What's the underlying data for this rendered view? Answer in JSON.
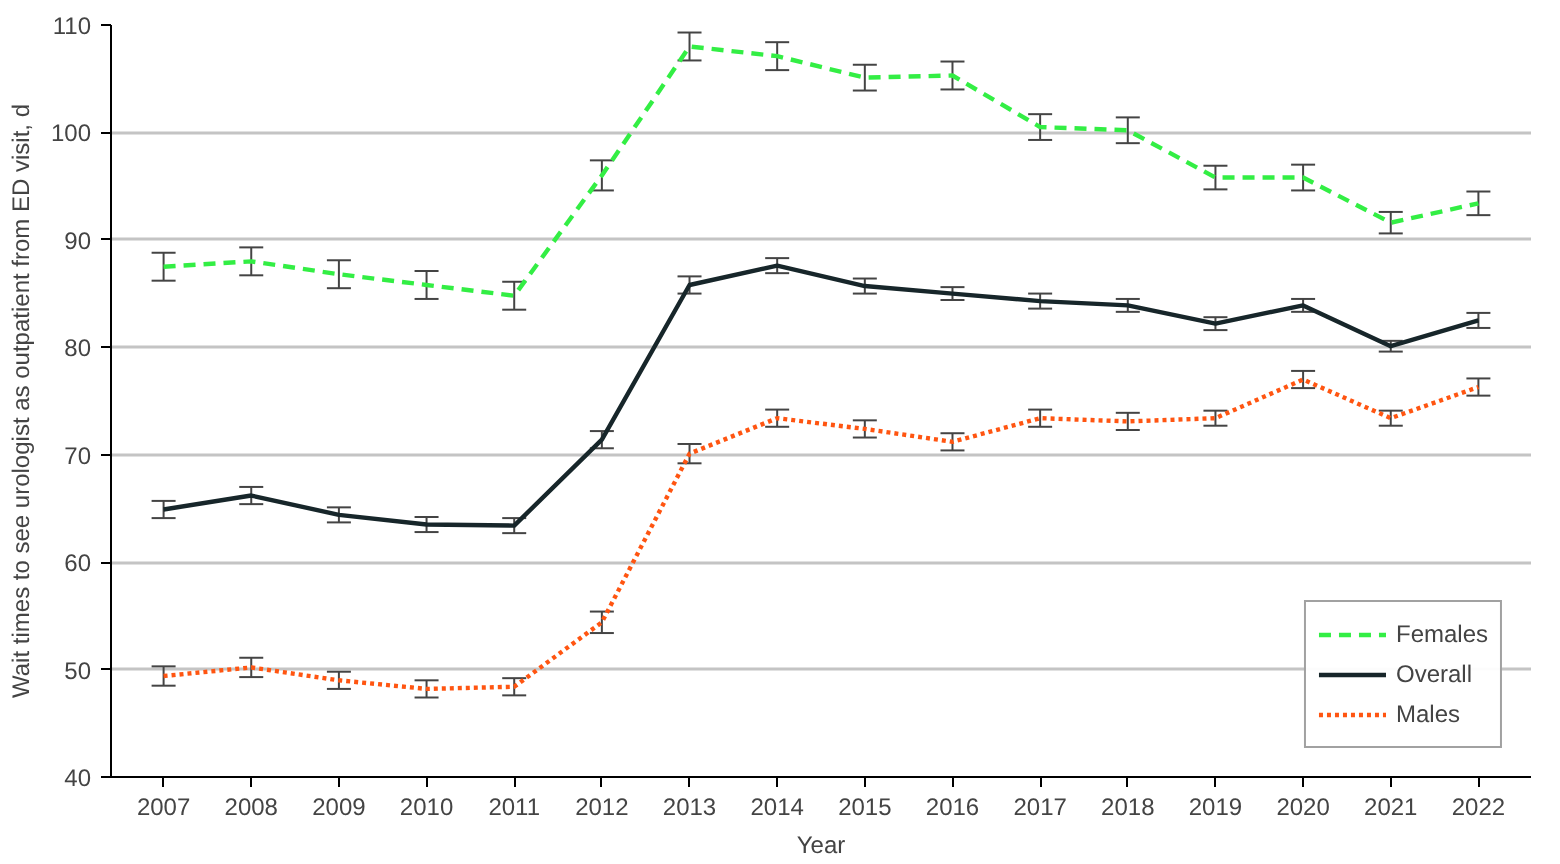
{
  "chart_data": {
    "type": "line",
    "xlabel": "Year",
    "ylabel": "Wait times to see urologist as outpatient from ED visit, d",
    "x": [
      2007,
      2008,
      2009,
      2010,
      2011,
      2012,
      2013,
      2014,
      2015,
      2016,
      2017,
      2018,
      2019,
      2020,
      2021,
      2022
    ],
    "series": [
      {
        "name": "Females",
        "color": "#33ee44",
        "line_style": "dashed",
        "values": [
          87.5,
          88.0,
          86.8,
          85.8,
          84.8,
          96.0,
          108.0,
          107.1,
          105.1,
          105.3,
          100.5,
          100.2,
          95.8,
          95.8,
          91.6,
          93.4
        ],
        "errors": [
          1.3,
          1.3,
          1.3,
          1.3,
          1.3,
          1.4,
          1.3,
          1.3,
          1.2,
          1.3,
          1.2,
          1.2,
          1.1,
          1.2,
          1.0,
          1.1
        ]
      },
      {
        "name": "Overall",
        "color": "#17262a",
        "line_style": "solid",
        "values": [
          64.9,
          66.2,
          64.4,
          63.5,
          63.4,
          71.4,
          85.8,
          87.6,
          85.7,
          85.0,
          84.3,
          83.9,
          82.2,
          83.9,
          80.1,
          82.5
        ],
        "errors": [
          0.8,
          0.8,
          0.7,
          0.7,
          0.7,
          0.8,
          0.8,
          0.7,
          0.7,
          0.6,
          0.7,
          0.6,
          0.6,
          0.6,
          0.5,
          0.7
        ]
      },
      {
        "name": "Males",
        "color": "#ff5511",
        "line_style": "dotted",
        "values": [
          49.4,
          50.2,
          49.0,
          48.2,
          48.4,
          54.4,
          70.1,
          73.4,
          72.4,
          71.2,
          73.4,
          73.1,
          73.4,
          77.0,
          73.4,
          76.3
        ],
        "errors": [
          0.9,
          0.9,
          0.8,
          0.8,
          0.8,
          1.0,
          0.9,
          0.8,
          0.8,
          0.8,
          0.8,
          0.8,
          0.7,
          0.8,
          0.7,
          0.8
        ]
      }
    ],
    "xlim": [
      2006.4,
      2022.6
    ],
    "ylim": [
      40,
      110
    ],
    "xticks": [
      2007,
      2008,
      2009,
      2010,
      2011,
      2012,
      2013,
      2014,
      2015,
      2016,
      2017,
      2018,
      2019,
      2020,
      2021,
      2022
    ],
    "yticks": [
      40,
      50,
      60,
      70,
      80,
      90,
      100,
      110
    ],
    "grid": "y",
    "legend": "bottom right",
    "marker": "none"
  }
}
